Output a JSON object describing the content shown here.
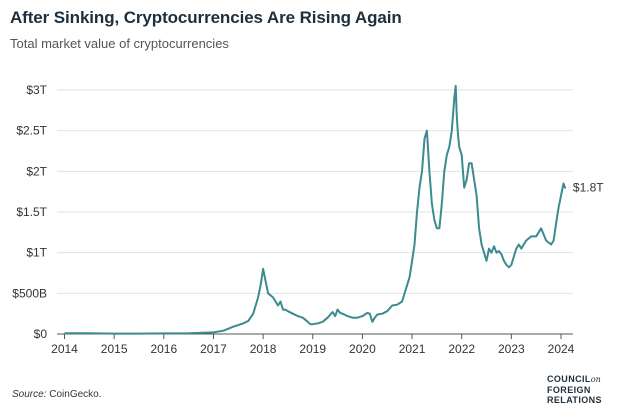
{
  "title": "After Sinking, Cryptocurrencies Are Rising Again",
  "subtitle": "Total market value of cryptocurrencies",
  "source": {
    "label": "Source:",
    "text": "CoinGecko."
  },
  "logo": {
    "line1": "COUNCIL",
    "on": "on",
    "line2": "FOREIGN",
    "line3": "RELATIONS"
  },
  "colors": {
    "line": "#3b8b8f",
    "grid": "#e2e2e2",
    "axis": "#555555"
  },
  "chart_data": {
    "type": "line",
    "title": "After Sinking, Cryptocurrencies Are Rising Again",
    "subtitle": "Total market value of cryptocurrencies",
    "xlabel": "",
    "ylabel": "",
    "xlim": [
      2014,
      2024.4
    ],
    "ylim": [
      0,
      3
    ],
    "y_unit": "trillion USD",
    "x_ticks": [
      "2014",
      "2015",
      "2016",
      "2017",
      "2018",
      "2019",
      "2020",
      "2021",
      "2022",
      "2023",
      "2024"
    ],
    "y_ticks": [
      {
        "value": 0,
        "label": "$0"
      },
      {
        "value": 0.5,
        "label": "$500B"
      },
      {
        "value": 1,
        "label": "$1T"
      },
      {
        "value": 1.5,
        "label": "$1.5T"
      },
      {
        "value": 2,
        "label": "$2T"
      },
      {
        "value": 2.5,
        "label": "$2.5T"
      },
      {
        "value": 3,
        "label": "$3T"
      }
    ],
    "grid": true,
    "annotations": [
      {
        "text": "$1.8T",
        "x": 2024.2,
        "y": 1.8
      }
    ],
    "series": [
      {
        "x": [
          2014.0,
          2014.5,
          2015.0,
          2015.5,
          2016.0,
          2016.5,
          2017.0,
          2017.2,
          2017.4,
          2017.5,
          2017.6,
          2017.7,
          2017.8,
          2017.9,
          2017.95,
          2018.0,
          2018.05,
          2018.1,
          2018.2,
          2018.3,
          2018.35,
          2018.4,
          2018.45,
          2018.5,
          2018.6,
          2018.7,
          2018.8,
          2018.9,
          2018.95,
          2019.0,
          2019.1,
          2019.2,
          2019.3,
          2019.4,
          2019.45,
          2019.5,
          2019.55,
          2019.6,
          2019.7,
          2019.8,
          2019.9,
          2020.0,
          2020.1,
          2020.15,
          2020.2,
          2020.25,
          2020.3,
          2020.4,
          2020.5,
          2020.6,
          2020.7,
          2020.8,
          2020.85,
          2020.9,
          2020.95,
          2021.0,
          2021.05,
          2021.1,
          2021.15,
          2021.2,
          2021.25,
          2021.3,
          2021.35,
          2021.4,
          2021.45,
          2021.5,
          2021.55,
          2021.6,
          2021.65,
          2021.7,
          2021.75,
          2021.8,
          2021.85,
          2021.88,
          2021.9,
          2021.92,
          2021.95,
          2022.0,
          2022.05,
          2022.1,
          2022.15,
          2022.2,
          2022.25,
          2022.3,
          2022.35,
          2022.4,
          2022.45,
          2022.5,
          2022.55,
          2022.6,
          2022.65,
          2022.7,
          2022.75,
          2022.8,
          2022.85,
          2022.9,
          2022.95,
          2023.0,
          2023.1,
          2023.15,
          2023.2,
          2023.3,
          2023.4,
          2023.5,
          2023.55,
          2023.6,
          2023.7,
          2023.8,
          2023.85,
          2023.9,
          2023.95,
          2024.0,
          2024.05,
          2024.08,
          2024.1
        ],
        "values": [
          0.01,
          0.01,
          0.005,
          0.005,
          0.007,
          0.01,
          0.02,
          0.04,
          0.09,
          0.11,
          0.13,
          0.16,
          0.25,
          0.45,
          0.6,
          0.8,
          0.65,
          0.5,
          0.45,
          0.35,
          0.4,
          0.3,
          0.3,
          0.28,
          0.25,
          0.22,
          0.2,
          0.15,
          0.12,
          0.12,
          0.13,
          0.15,
          0.2,
          0.27,
          0.22,
          0.3,
          0.26,
          0.25,
          0.22,
          0.2,
          0.2,
          0.22,
          0.26,
          0.25,
          0.15,
          0.2,
          0.24,
          0.25,
          0.28,
          0.35,
          0.36,
          0.4,
          0.5,
          0.6,
          0.7,
          0.9,
          1.1,
          1.5,
          1.8,
          2.0,
          2.4,
          2.5,
          2.0,
          1.6,
          1.4,
          1.3,
          1.3,
          1.6,
          2.0,
          2.2,
          2.3,
          2.5,
          2.9,
          3.05,
          2.7,
          2.5,
          2.3,
          2.2,
          1.8,
          1.9,
          2.1,
          2.1,
          1.9,
          1.7,
          1.3,
          1.1,
          1.0,
          0.9,
          1.05,
          1.0,
          1.08,
          1.0,
          1.02,
          0.98,
          0.9,
          0.85,
          0.82,
          0.85,
          1.05,
          1.1,
          1.05,
          1.15,
          1.2,
          1.2,
          1.25,
          1.3,
          1.15,
          1.1,
          1.15,
          1.35,
          1.55,
          1.7,
          1.85,
          1.8,
          1.8
        ]
      }
    ]
  }
}
